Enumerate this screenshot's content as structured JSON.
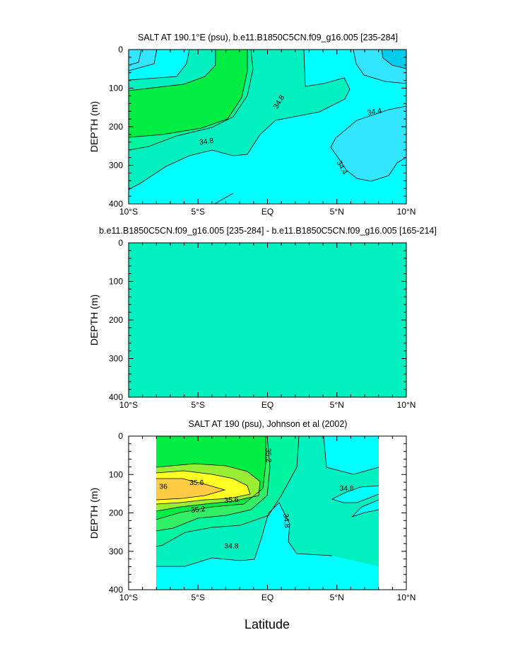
{
  "figure": {
    "xlabel": "Latitude",
    "colors": {
      "s_34_2": "#00ccee",
      "s_34_4": "#33e6ff",
      "s_34_6": "#00ffff",
      "s_34_8": "#00f0c0",
      "s_35_0": "#00f5a0",
      "s_35_2": "#33ef66",
      "s_35_4": "#00ee44",
      "s_35_6": "#99ee33",
      "s_35_8": "#ffff22",
      "s_36_0": "#ffcc44"
    }
  },
  "chart_data": [
    {
      "type": "contour",
      "title": "SALT AT 190.1°E (psu), b.e11.B1850C5CN.f09_g16.005 [235-284]",
      "ylabel": "DEPTH (m)",
      "xlim": [
        -10,
        10
      ],
      "ylim": [
        400,
        0
      ],
      "xtick_labels": [
        "10°S",
        "5°S",
        "EQ",
        "5°N",
        "10°N"
      ],
      "ytick_labels": [
        "0",
        "100",
        "200",
        "300",
        "400"
      ],
      "contour_labels": [
        {
          "text": "34.8",
          "lat": 0.8,
          "depth": 135,
          "angle": -58
        },
        {
          "text": "34.8",
          "lat": -4.4,
          "depth": 237,
          "angle": -8
        },
        {
          "text": "34.4",
          "lat": 7.7,
          "depth": 160,
          "angle": -10
        },
        {
          "text": "34.4",
          "lat": 5.4,
          "depth": 305,
          "angle": 62
        }
      ]
    },
    {
      "type": "contour",
      "title": "b.e11.B1850C5CN.f09_g16.005 [235-284] - b.e11.B1850C5CN.f09_g16.005 [165-214]",
      "ylabel": "DEPTH (m)",
      "xlim": [
        -10,
        10
      ],
      "ylim": [
        400,
        0
      ],
      "xtick_labels": [
        "10°S",
        "5°S",
        "EQ",
        "5°N",
        "10°N"
      ],
      "ytick_labels": [
        "0",
        "100",
        "200",
        "300",
        "400"
      ],
      "contour_labels": []
    },
    {
      "type": "contour",
      "title": "SALT AT 190 (psu), Johnson et al (2002)",
      "ylabel": "DEPTH (m)",
      "xlim": [
        -10,
        10
      ],
      "ylim": [
        400,
        0
      ],
      "data_lat_range": [
        -8,
        8
      ],
      "xtick_labels": [
        "10°S",
        "5°S",
        "EQ",
        "5°N",
        "10°N"
      ],
      "ytick_labels": [
        "0",
        "100",
        "200",
        "300",
        "400"
      ],
      "contour_labels": [
        {
          "text": "35.2",
          "lat": 0.1,
          "depth": 50,
          "angle": 88
        },
        {
          "text": "35.6",
          "lat": -5.1,
          "depth": 120,
          "angle": 0
        },
        {
          "text": "36",
          "lat": -7.5,
          "depth": 130,
          "angle": 0
        },
        {
          "text": "35.6",
          "lat": -2.6,
          "depth": 165,
          "angle": -4
        },
        {
          "text": "35.2",
          "lat": -5.0,
          "depth": 190,
          "angle": -6
        },
        {
          "text": "34.8",
          "lat": 1.4,
          "depth": 220,
          "angle": 84
        },
        {
          "text": "34.8",
          "lat": -2.6,
          "depth": 285,
          "angle": 0
        },
        {
          "text": "34.8",
          "lat": 5.7,
          "depth": 135,
          "angle": 0
        }
      ]
    }
  ]
}
